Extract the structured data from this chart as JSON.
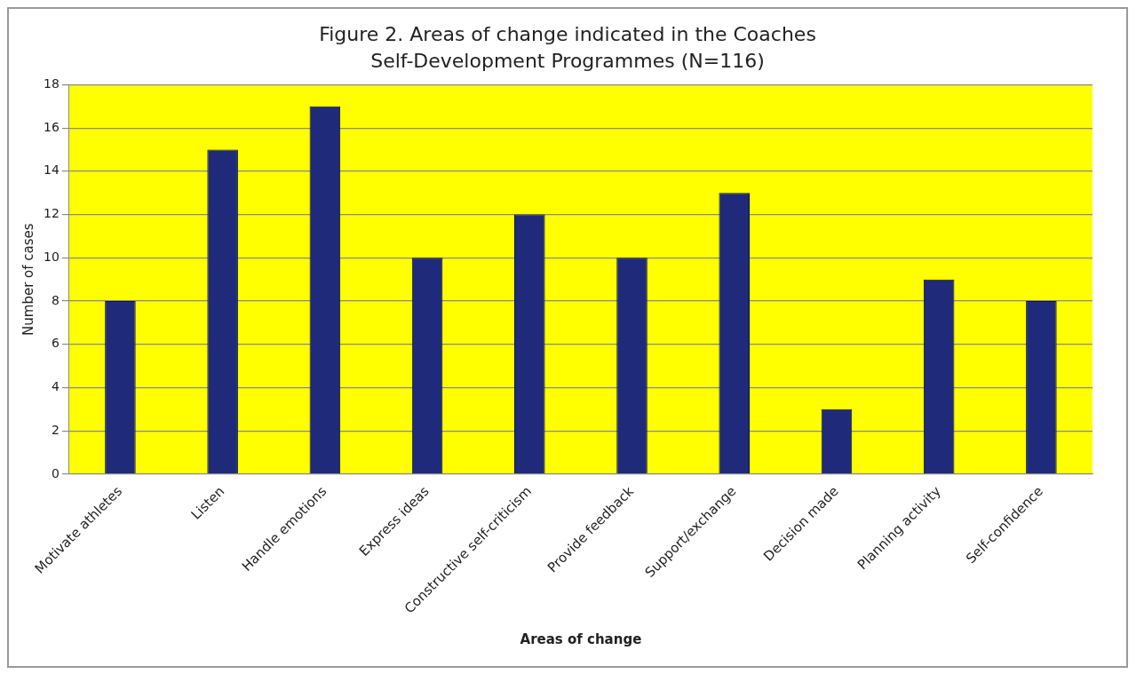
{
  "chart_data": {
    "type": "bar",
    "title": "Figure 2. Areas of change indicated in the Coaches Self-Development Programmes  (N=116)",
    "xlabel": "Areas of change",
    "ylabel": "Number of cases",
    "categories": [
      "Motivate athletes",
      "Listen",
      "Handle emotions",
      "Express ideas",
      "Constructive self-criticism",
      "Provide feedback",
      "Support/exchange",
      "Decision made",
      "Planning activity",
      "Self-confidence"
    ],
    "values": [
      8,
      15,
      17,
      10,
      12,
      10,
      13,
      3,
      9,
      8
    ],
    "color": "#1f2a7a",
    "ylim": [
      0,
      18
    ],
    "yticks": [
      0,
      2,
      4,
      6,
      8,
      10,
      12,
      14,
      16,
      18
    ],
    "grid": "y",
    "legend": false
  }
}
